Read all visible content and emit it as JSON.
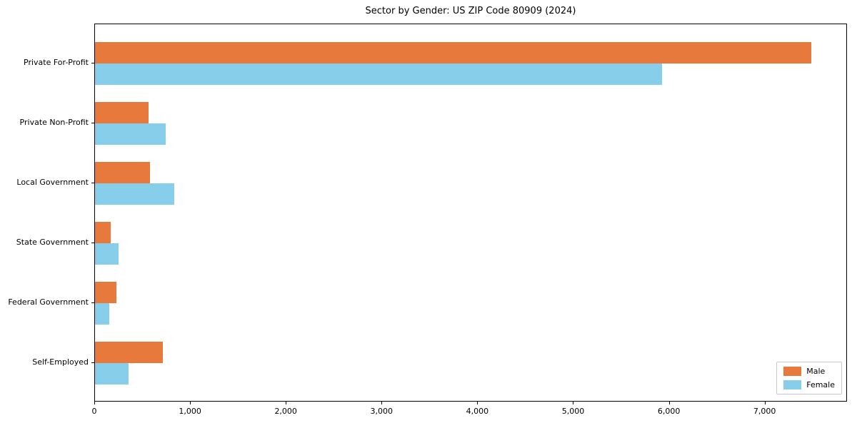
{
  "title": "Sector by Gender: US ZIP Code 80909 (2024)",
  "chart_data": {
    "type": "bar",
    "orientation": "horizontal",
    "title": "Sector by Gender: US ZIP Code 80909 (2024)",
    "categories": [
      "Private For-Profit",
      "Private Non-Profit",
      "Local Government",
      "State Government",
      "Federal Government",
      "Self-Employed"
    ],
    "series": [
      {
        "name": "Male",
        "color": "#e8793d",
        "values": [
          7480,
          560,
          575,
          165,
          225,
          710
        ]
      },
      {
        "name": "Female",
        "color": "#87ceeb",
        "values": [
          5920,
          740,
          830,
          245,
          150,
          350
        ]
      }
    ],
    "xlabel": "",
    "ylabel": "",
    "xlim": [
      0,
      7860
    ],
    "xticks": [
      0,
      1000,
      2000,
      3000,
      4000,
      5000,
      6000,
      7000
    ],
    "xtick_labels": [
      "0",
      "1,000",
      "2,000",
      "3,000",
      "4,000",
      "5,000",
      "6,000",
      "7,000"
    ],
    "grid": false,
    "legend": {
      "position": "lower right"
    }
  }
}
